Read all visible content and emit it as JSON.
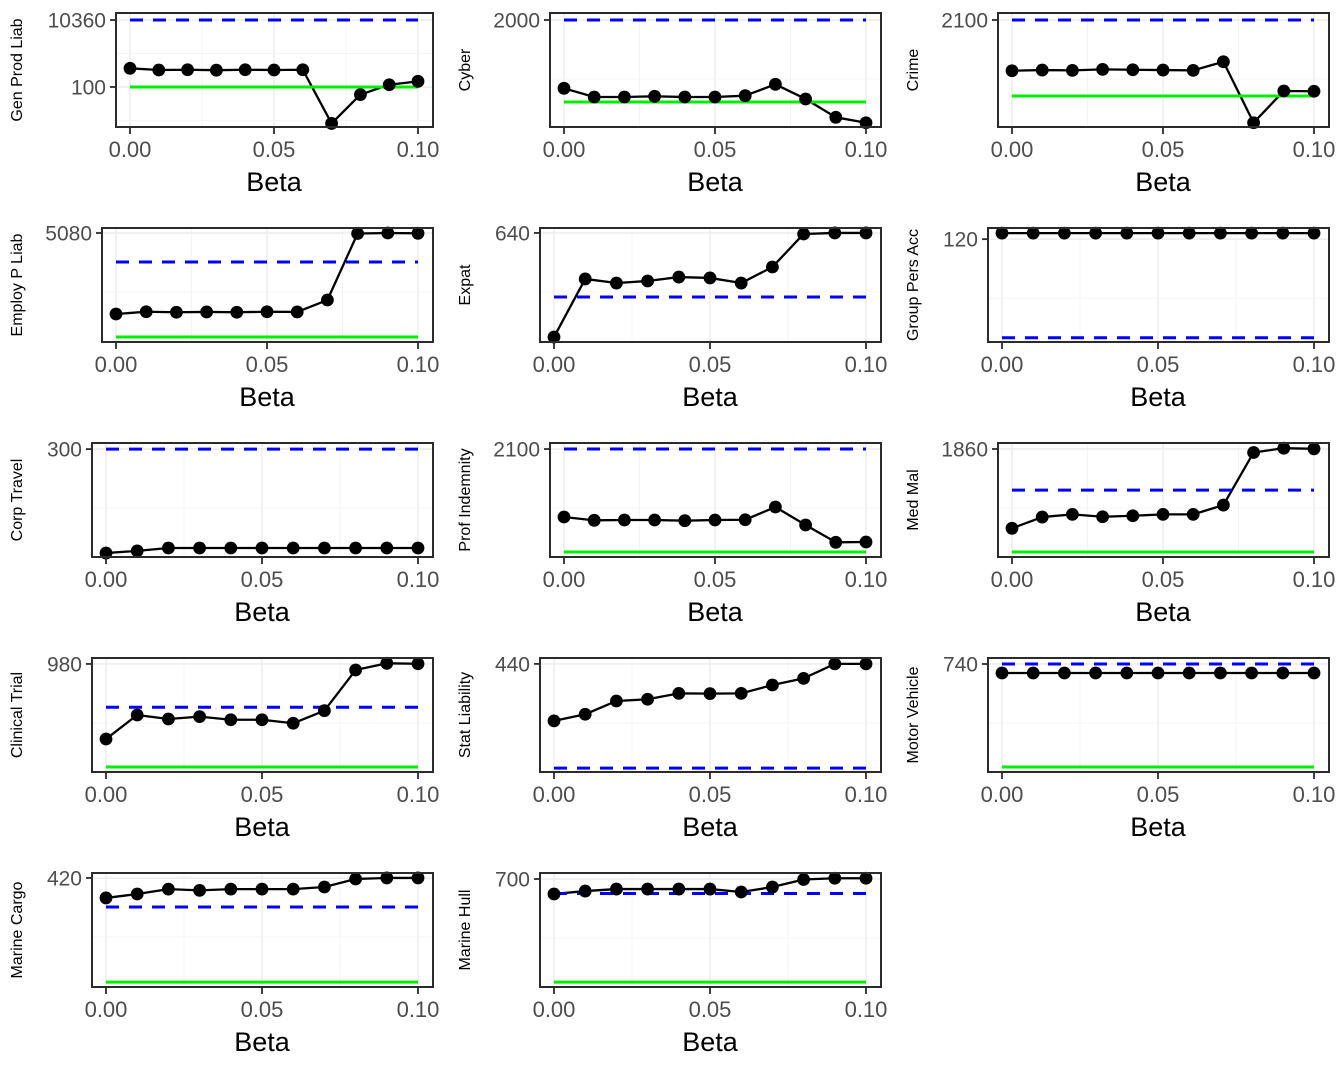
{
  "chart_data": {
    "type": "line",
    "xlabel": "Beta",
    "x": [
      0,
      0.01,
      0.02,
      0.03,
      0.04,
      0.05,
      0.06,
      0.07,
      0.08,
      0.09,
      0.1
    ],
    "xticks": [
      {
        "value": 0,
        "label": "0.00"
      },
      {
        "value": 0.05,
        "label": "0.05"
      },
      {
        "value": 0.1,
        "label": "0.10"
      }
    ],
    "xlim": [
      0,
      0.1
    ],
    "grid": true,
    "legend_position": "none",
    "series_style": {
      "points": "black filled circles",
      "line": "black solid",
      "blue_dashed": "horizontal reference line",
      "green_solid": "horizontal reference line"
    },
    "facets": [
      {
        "label": "Gen Prod Liab",
        "yscale": "log",
        "ylim": [
          6.25,
          16870
        ],
        "yticks": [
          {
            "value": 10360,
            "label": "10360"
          },
          {
            "value": 100,
            "label": "100"
          }
        ],
        "blue_dashed": 10360,
        "green_solid": 100,
        "values": [
          365,
          325,
          330,
          320,
          330,
          325,
          330,
          8,
          59,
          117,
          148
        ]
      },
      {
        "label": "Cyber",
        "yscale": "linear",
        "ylim": [
          0,
          2131
        ],
        "yticks": [
          {
            "value": 2000,
            "label": "2000"
          }
        ],
        "blue_dashed": 2000,
        "green_solid": 467,
        "values": [
          723,
          561,
          561,
          574,
          561,
          561,
          585,
          798,
          524,
          181,
          80
        ]
      },
      {
        "label": "Crime",
        "yscale": "linear",
        "ylim": [
          0,
          2237
        ],
        "yticks": [
          {
            "value": 2100,
            "label": "2100"
          }
        ],
        "blue_dashed": 2100,
        "green_solid": 608,
        "values": [
          1104,
          1117,
          1111,
          1131,
          1123,
          1117,
          1111,
          1280,
          84,
          707,
          701
        ]
      },
      {
        "label": "Employ P Liab",
        "yscale": "linear",
        "ylim": [
          0,
          5313
        ],
        "yticks": [
          {
            "value": 5080,
            "label": "5080"
          }
        ],
        "blue_dashed": 3728,
        "green_solid": 233,
        "values": [
          1305,
          1410,
          1385,
          1400,
          1385,
          1410,
          1400,
          1957,
          5056,
          5080,
          5066
        ]
      },
      {
        "label": "Expat",
        "yscale": "linear",
        "ylim": [
          0,
          669
        ],
        "yticks": [
          {
            "value": 640,
            "label": "640"
          }
        ],
        "blue_dashed": 264,
        "green_solid": null,
        "values": [
          29,
          370,
          346,
          358,
          381,
          376,
          346,
          440,
          634,
          640,
          640
        ]
      },
      {
        "label": "Group Pers Acc",
        "yscale": "linear",
        "ylim": [
          0,
          133
        ],
        "yticks": [
          {
            "value": 120,
            "label": "120"
          }
        ],
        "blue_dashed": 5,
        "green_solid": null,
        "values": [
          127,
          127,
          127,
          127,
          127,
          127,
          127,
          127,
          127,
          127,
          127
        ]
      },
      {
        "label": "Corp Travel",
        "yscale": "linear",
        "ylim": [
          0,
          317
        ],
        "yticks": [
          {
            "value": 300,
            "label": "300"
          }
        ],
        "blue_dashed": 300,
        "green_solid": null,
        "values": [
          11,
          17,
          25,
          25,
          25,
          25,
          25,
          25,
          25,
          25,
          25
        ]
      },
      {
        "label": "Prof Indemnity",
        "yscale": "linear",
        "ylim": [
          0,
          2217
        ],
        "yticks": [
          {
            "value": 2100,
            "label": "2100"
          }
        ],
        "blue_dashed": 2100,
        "green_solid": 97,
        "values": [
          778,
          713,
          719,
          719,
          706,
          719,
          725,
          972,
          622,
          286,
          292
        ]
      },
      {
        "label": "Med Mal",
        "yscale": "linear",
        "ylim": [
          0,
          1963
        ],
        "yticks": [
          {
            "value": 1860,
            "label": "1860"
          }
        ],
        "blue_dashed": 1152,
        "green_solid": 86,
        "values": [
          494,
          688,
          734,
          693,
          710,
          734,
          734,
          894,
          1800,
          1874,
          1863
        ]
      },
      {
        "label": "Clinical Trial",
        "yscale": "linear",
        "ylim": [
          0,
          1034
        ],
        "yticks": [
          {
            "value": 980,
            "label": "980"
          }
        ],
        "blue_dashed": 587,
        "green_solid": 45,
        "values": [
          299,
          517,
          481,
          502,
          474,
          474,
          442,
          556,
          925,
          986,
          982
        ]
      },
      {
        "label": "Stat Liability",
        "yscale": "linear",
        "ylim": [
          0,
          464
        ],
        "yticks": [
          {
            "value": 440,
            "label": "440"
          }
        ],
        "blue_dashed": 16,
        "green_solid": null,
        "values": [
          208,
          235,
          289,
          296,
          320,
          319,
          320,
          354,
          381,
          440,
          440
        ]
      },
      {
        "label": "Motor Vehicle",
        "yscale": "linear",
        "ylim": [
          0,
          781
        ],
        "yticks": [
          {
            "value": 740,
            "label": "740"
          }
        ],
        "blue_dashed": 740,
        "green_solid": 34,
        "values": [
          678,
          678,
          678,
          678,
          678,
          678,
          678,
          678,
          678,
          678,
          678
        ]
      },
      {
        "label": "Marine Cargo",
        "yscale": "linear",
        "ylim": [
          0,
          439
        ],
        "yticks": [
          {
            "value": 420,
            "label": "420"
          }
        ],
        "blue_dashed": 308,
        "green_solid": 19,
        "values": [
          343,
          358,
          377,
          372,
          377,
          377,
          377,
          385,
          416,
          420,
          420
        ]
      },
      {
        "label": "Marine Hull",
        "yscale": "linear",
        "ylim": [
          0,
          739
        ],
        "yticks": [
          {
            "value": 700,
            "label": "700"
          }
        ],
        "blue_dashed": 606,
        "green_solid": 32,
        "values": [
          603,
          622,
          635,
          635,
          635,
          635,
          616,
          648,
          697,
          705,
          705
        ]
      }
    ]
  },
  "colors": {
    "blue_ref": "#0000FF",
    "green_ref": "#00EE00",
    "data": "#000000",
    "grid_major": "#EBEBEB",
    "grid_minor": "#F4F4F4",
    "panel_border": "#2B2B2B",
    "tick_text": "#4D4D4D",
    "axis_title_text": "#000000",
    "background": "#FFFFFF"
  }
}
